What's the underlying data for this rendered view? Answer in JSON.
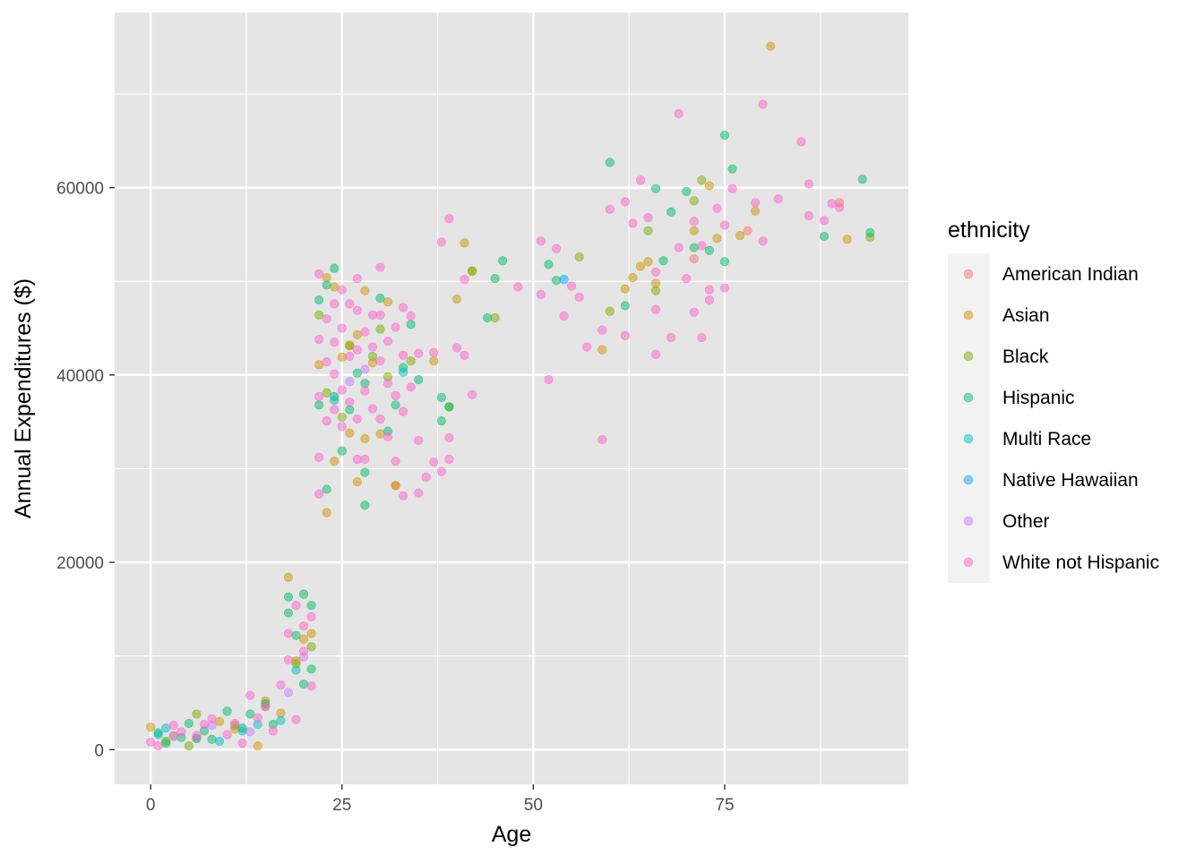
{
  "chart_data": {
    "type": "scatter",
    "title": "",
    "xlabel": "Age",
    "ylabel": "Annual Expenditures ($)",
    "xlim": [
      -4.7,
      99
    ],
    "ylim": [
      -3700,
      78700
    ],
    "x_ticks": [
      0,
      25,
      50,
      75
    ],
    "x_tick_labels": [
      "0",
      "25",
      "50",
      "75"
    ],
    "y_ticks": [
      0,
      20000,
      40000,
      60000
    ],
    "y_tick_labels": [
      "0",
      "20000",
      "40000",
      "60000"
    ],
    "grid": true,
    "legend_position": "right",
    "legend": {
      "title": "ethnicity",
      "entries": [
        {
          "name": "American Indian",
          "color": "#F8766D"
        },
        {
          "name": "Asian",
          "color": "#CD9600"
        },
        {
          "name": "Black",
          "color": "#7CAE00"
        },
        {
          "name": "Hispanic",
          "color": "#00BE67"
        },
        {
          "name": "Multi Race",
          "color": "#00BFC4"
        },
        {
          "name": "Native Hawaiian",
          "color": "#00A9FF"
        },
        {
          "name": "Other",
          "color": "#C77CFF"
        },
        {
          "name": "White not Hispanic",
          "color": "#FF61CC"
        }
      ]
    },
    "panel_background": "#E5E5E5",
    "grid_color": "#FFFFFF",
    "point_opacity": 0.5,
    "series": [
      {
        "name": "American Indian",
        "color": "#F8766D",
        "points": [
          [
            32,
            28200
          ],
          [
            71,
            52400
          ],
          [
            78,
            55400
          ],
          [
            90,
            58400
          ]
        ]
      },
      {
        "name": "Asian",
        "color": "#CD9600",
        "points": [
          [
            0,
            2400
          ],
          [
            3,
            1500
          ],
          [
            6,
            1200
          ],
          [
            9,
            3000
          ],
          [
            11,
            2200
          ],
          [
            14,
            400
          ],
          [
            15,
            5200
          ],
          [
            17,
            3900
          ],
          [
            18,
            18400
          ],
          [
            19,
            9500
          ],
          [
            20,
            11800
          ],
          [
            21,
            12400
          ],
          [
            22,
            41100
          ],
          [
            23,
            25300
          ],
          [
            23,
            50400
          ],
          [
            24,
            30800
          ],
          [
            24,
            49400
          ],
          [
            25,
            41900
          ],
          [
            26,
            33800
          ],
          [
            26,
            43200
          ],
          [
            27,
            28600
          ],
          [
            27,
            44300
          ],
          [
            28,
            33200
          ],
          [
            28,
            49000
          ],
          [
            29,
            41300
          ],
          [
            30,
            33700
          ],
          [
            31,
            47800
          ],
          [
            32,
            28200
          ],
          [
            37,
            41500
          ],
          [
            40,
            48100
          ],
          [
            41,
            54100
          ],
          [
            42,
            51100
          ],
          [
            59,
            42700
          ],
          [
            62,
            49200
          ],
          [
            63,
            50400
          ],
          [
            64,
            51600
          ],
          [
            65,
            52100
          ],
          [
            66,
            49800
          ],
          [
            71,
            55400
          ],
          [
            73,
            60200
          ],
          [
            74,
            54600
          ],
          [
            77,
            54900
          ],
          [
            79,
            57500
          ],
          [
            81,
            75100
          ],
          [
            91,
            54500
          ]
        ]
      },
      {
        "name": "Black",
        "color": "#7CAE00",
        "points": [
          [
            2,
            900
          ],
          [
            5,
            400
          ],
          [
            6,
            3800
          ],
          [
            11,
            2600
          ],
          [
            15,
            4600
          ],
          [
            19,
            9200
          ],
          [
            21,
            11000
          ],
          [
            22,
            46400
          ],
          [
            23,
            38100
          ],
          [
            25,
            35500
          ],
          [
            26,
            43100
          ],
          [
            29,
            42000
          ],
          [
            30,
            44900
          ],
          [
            31,
            39800
          ],
          [
            34,
            41500
          ],
          [
            39,
            36600
          ],
          [
            42,
            51100
          ],
          [
            45,
            46100
          ],
          [
            56,
            52600
          ],
          [
            60,
            46800
          ],
          [
            65,
            55400
          ],
          [
            66,
            49000
          ],
          [
            71,
            58600
          ],
          [
            72,
            60800
          ],
          [
            94,
            54700
          ]
        ]
      },
      {
        "name": "Hispanic",
        "color": "#00BE67",
        "points": [
          [
            1,
            1800
          ],
          [
            2,
            700
          ],
          [
            4,
            1300
          ],
          [
            5,
            2800
          ],
          [
            7,
            2000
          ],
          [
            8,
            1100
          ],
          [
            10,
            4100
          ],
          [
            12,
            2300
          ],
          [
            13,
            3800
          ],
          [
            15,
            4900
          ],
          [
            16,
            2700
          ],
          [
            18,
            16300
          ],
          [
            18,
            14600
          ],
          [
            19,
            12200
          ],
          [
            20,
            16600
          ],
          [
            20,
            7000
          ],
          [
            21,
            15400
          ],
          [
            21,
            8600
          ],
          [
            22,
            48000
          ],
          [
            22,
            36800
          ],
          [
            23,
            27800
          ],
          [
            23,
            49600
          ],
          [
            24,
            51400
          ],
          [
            24,
            37700
          ],
          [
            25,
            31900
          ],
          [
            26,
            36300
          ],
          [
            27,
            40200
          ],
          [
            28,
            39100
          ],
          [
            28,
            26100
          ],
          [
            28,
            29600
          ],
          [
            30,
            48200
          ],
          [
            31,
            34000
          ],
          [
            32,
            36800
          ],
          [
            33,
            40800
          ],
          [
            34,
            45400
          ],
          [
            35,
            39500
          ],
          [
            38,
            35100
          ],
          [
            38,
            37600
          ],
          [
            39,
            36600
          ],
          [
            44,
            46100
          ],
          [
            45,
            50300
          ],
          [
            46,
            52200
          ],
          [
            52,
            51800
          ],
          [
            53,
            50100
          ],
          [
            60,
            62700
          ],
          [
            62,
            47400
          ],
          [
            66,
            59900
          ],
          [
            67,
            52200
          ],
          [
            68,
            57400
          ],
          [
            70,
            59600
          ],
          [
            71,
            53600
          ],
          [
            73,
            53300
          ],
          [
            75,
            65600
          ],
          [
            75,
            52100
          ],
          [
            76,
            62000
          ],
          [
            88,
            54800
          ],
          [
            93,
            60900
          ],
          [
            94,
            55200
          ]
        ]
      },
      {
        "name": "Multi Race",
        "color": "#00BFC4",
        "points": [
          [
            1,
            1600
          ],
          [
            2,
            2300
          ],
          [
            6,
            1200
          ],
          [
            9,
            900
          ],
          [
            12,
            2000
          ],
          [
            14,
            2700
          ],
          [
            17,
            3100
          ],
          [
            19,
            8500
          ],
          [
            24,
            37300
          ],
          [
            33,
            40300
          ]
        ]
      },
      {
        "name": "Native Hawaiian",
        "color": "#00A9FF",
        "points": [
          [
            54,
            50200
          ]
        ]
      },
      {
        "name": "Other",
        "color": "#C77CFF",
        "points": [
          [
            3,
            1400
          ],
          [
            8,
            2600
          ],
          [
            13,
            1900
          ],
          [
            18,
            6100
          ],
          [
            20,
            9900
          ],
          [
            26,
            39300
          ],
          [
            28,
            40600
          ]
        ]
      },
      {
        "name": "White not Hispanic",
        "color": "#FF61CC",
        "points": [
          [
            0,
            800
          ],
          [
            1,
            400
          ],
          [
            3,
            2600
          ],
          [
            4,
            1900
          ],
          [
            6,
            1500
          ],
          [
            7,
            2700
          ],
          [
            8,
            3300
          ],
          [
            10,
            1600
          ],
          [
            11,
            2800
          ],
          [
            12,
            700
          ],
          [
            13,
            5800
          ],
          [
            14,
            3400
          ],
          [
            15,
            4600
          ],
          [
            16,
            2000
          ],
          [
            17,
            6900
          ],
          [
            18,
            9600
          ],
          [
            18,
            12400
          ],
          [
            19,
            3200
          ],
          [
            19,
            15400
          ],
          [
            20,
            13200
          ],
          [
            20,
            10500
          ],
          [
            21,
            14200
          ],
          [
            21,
            6800
          ],
          [
            22,
            50800
          ],
          [
            22,
            43800
          ],
          [
            22,
            37700
          ],
          [
            22,
            31200
          ],
          [
            22,
            27300
          ],
          [
            23,
            46000
          ],
          [
            23,
            41400
          ],
          [
            23,
            35100
          ],
          [
            24,
            47600
          ],
          [
            24,
            43500
          ],
          [
            24,
            40100
          ],
          [
            24,
            36300
          ],
          [
            25,
            49100
          ],
          [
            25,
            45000
          ],
          [
            25,
            38400
          ],
          [
            25,
            34500
          ],
          [
            26,
            47600
          ],
          [
            26,
            42000
          ],
          [
            26,
            37100
          ],
          [
            27,
            50300
          ],
          [
            27,
            46900
          ],
          [
            27,
            42700
          ],
          [
            27,
            35300
          ],
          [
            27,
            31000
          ],
          [
            28,
            44600
          ],
          [
            28,
            38300
          ],
          [
            28,
            31000
          ],
          [
            29,
            46400
          ],
          [
            29,
            43000
          ],
          [
            29,
            36400
          ],
          [
            30,
            51500
          ],
          [
            30,
            46400
          ],
          [
            30,
            41500
          ],
          [
            30,
            35300
          ],
          [
            31,
            43600
          ],
          [
            31,
            39100
          ],
          [
            31,
            33400
          ],
          [
            32,
            45100
          ],
          [
            32,
            37800
          ],
          [
            32,
            30800
          ],
          [
            33,
            47200
          ],
          [
            33,
            42100
          ],
          [
            33,
            36100
          ],
          [
            33,
            27100
          ],
          [
            34,
            46300
          ],
          [
            34,
            38700
          ],
          [
            35,
            42300
          ],
          [
            35,
            33000
          ],
          [
            35,
            27400
          ],
          [
            36,
            29100
          ],
          [
            37,
            42400
          ],
          [
            37,
            30700
          ],
          [
            38,
            54200
          ],
          [
            38,
            29700
          ],
          [
            39,
            56700
          ],
          [
            39,
            33300
          ],
          [
            39,
            31000
          ],
          [
            40,
            42900
          ],
          [
            41,
            50200
          ],
          [
            41,
            42100
          ],
          [
            42,
            37900
          ],
          [
            48,
            49400
          ],
          [
            51,
            54300
          ],
          [
            51,
            48600
          ],
          [
            52,
            39500
          ],
          [
            53,
            53500
          ],
          [
            54,
            46300
          ],
          [
            55,
            49500
          ],
          [
            56,
            48300
          ],
          [
            57,
            43000
          ],
          [
            59,
            44800
          ],
          [
            59,
            33100
          ],
          [
            60,
            57700
          ],
          [
            62,
            58500
          ],
          [
            62,
            44200
          ],
          [
            63,
            56200
          ],
          [
            64,
            60800
          ],
          [
            65,
            56800
          ],
          [
            66,
            51000
          ],
          [
            66,
            47000
          ],
          [
            66,
            42200
          ],
          [
            68,
            44000
          ],
          [
            69,
            67900
          ],
          [
            69,
            53600
          ],
          [
            70,
            50300
          ],
          [
            71,
            56400
          ],
          [
            71,
            46700
          ],
          [
            72,
            53800
          ],
          [
            72,
            44000
          ],
          [
            73,
            49100
          ],
          [
            73,
            48000
          ],
          [
            74,
            57800
          ],
          [
            75,
            56000
          ],
          [
            75,
            49300
          ],
          [
            76,
            59900
          ],
          [
            79,
            58400
          ],
          [
            80,
            68900
          ],
          [
            80,
            54300
          ],
          [
            82,
            58800
          ],
          [
            85,
            64900
          ],
          [
            86,
            60400
          ],
          [
            86,
            57000
          ],
          [
            88,
            56500
          ],
          [
            89,
            58300
          ],
          [
            90,
            57900
          ]
        ]
      }
    ]
  }
}
